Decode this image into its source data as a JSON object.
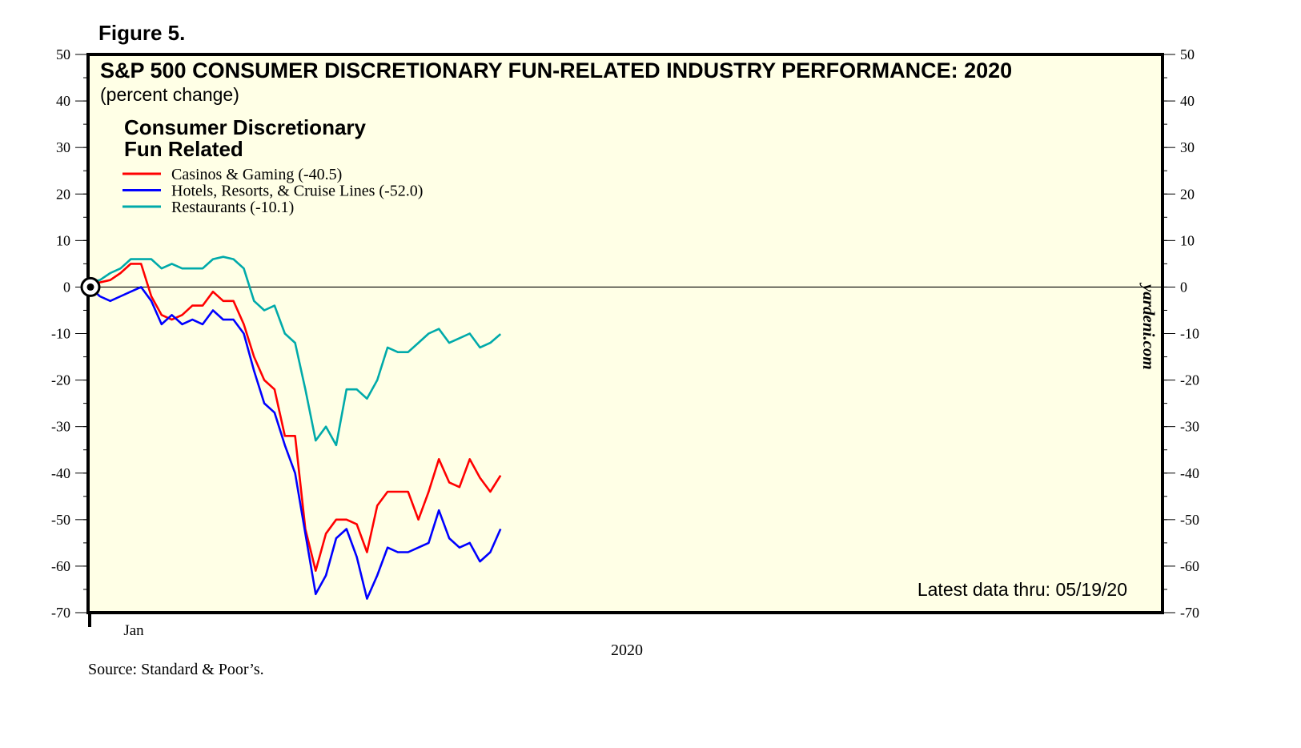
{
  "figure_label": "Figure 5.",
  "chart_data": {
    "type": "line",
    "title": "S&P 500 CONSUMER DISCRETIONARY FUN-RELATED INDUSTRY PERFORMANCE: 2020",
    "subtitle": "(percent change)",
    "legend_heading": [
      "Consumer Discretionary",
      "Fun Related"
    ],
    "legend_placement": "top-left",
    "xlabel": "2020",
    "x_unit": "day of year",
    "xlim": [
      0,
      365
    ],
    "x_ticks": [
      {
        "day": 15,
        "label": "Jan"
      }
    ],
    "ylim": [
      -70,
      50
    ],
    "y_ticks": [
      50,
      40,
      30,
      20,
      10,
      0,
      -10,
      -20,
      -30,
      -40,
      -50,
      -60,
      -70
    ],
    "y_tick_labels": [
      "50",
      "40",
      "30",
      "20",
      "10",
      "0",
      "-10",
      "-20",
      "-30",
      "-40",
      "-50",
      "-60",
      "-70"
    ],
    "x": [
      0,
      3.5,
      7,
      10.5,
      14,
      17.5,
      21,
      24.5,
      28,
      31.5,
      35,
      38.5,
      42,
      45.5,
      49,
      52.5,
      56,
      59.5,
      63,
      66.5,
      70,
      73.5,
      77,
      80.5,
      84,
      87.5,
      91,
      94.5,
      98,
      101.5,
      105,
      108.5,
      112,
      115.5,
      119,
      122.5,
      126,
      129.5,
      133,
      136.5,
      140
    ],
    "series": [
      {
        "name": "Casinos & Gaming (-40.5)",
        "color": "#ff0000",
        "values": [
          0,
          1,
          1.5,
          3,
          5,
          5,
          -2,
          -6,
          -7,
          -6,
          -4,
          -4,
          -1,
          -3,
          -3,
          -8,
          -15,
          -20,
          -22,
          -32,
          -32,
          -52,
          -61,
          -53,
          -50,
          -50,
          -51,
          -57,
          -47,
          -44,
          -44,
          -44,
          -50,
          -44,
          -37,
          -42,
          -43,
          -37,
          -41,
          -44,
          -40.5
        ]
      },
      {
        "name": "Hotels, Resorts, & Cruise Lines (-52.0)",
        "color": "#0000ff",
        "values": [
          0,
          -2,
          -3,
          -2,
          -1,
          0,
          -3,
          -8,
          -6,
          -8,
          -7,
          -8,
          -5,
          -7,
          -7,
          -10,
          -18,
          -25,
          -27,
          -34,
          -40,
          -53,
          -66,
          -62,
          -54,
          -52,
          -58,
          -67,
          -62,
          -56,
          -57,
          -57,
          -56,
          -55,
          -48,
          -54,
          -56,
          -55,
          -59,
          -57,
          -52
        ]
      },
      {
        "name": "Restaurants (-10.1)",
        "color": "#00aaaa",
        "values": [
          1,
          1.5,
          3,
          4,
          6,
          6,
          6,
          4,
          5,
          4,
          4,
          4,
          6,
          6.5,
          6,
          4,
          -3,
          -5,
          -4,
          -10,
          -12,
          -22,
          -33,
          -30,
          -34,
          -22,
          -22,
          -24,
          -20,
          -13,
          -14,
          -14,
          -12,
          -10,
          -9,
          -12,
          -11,
          -10,
          -13,
          -12,
          -10.1
        ]
      }
    ],
    "annotations": {
      "latest": "Latest data thru: 05/19/20",
      "watermark": "yardeni.com"
    },
    "grid": false
  },
  "source": "Source: Standard & Poor’s."
}
